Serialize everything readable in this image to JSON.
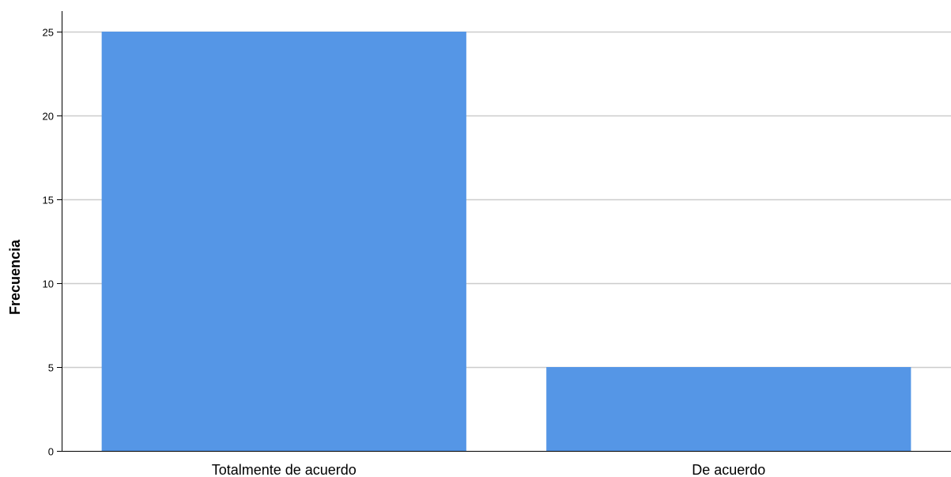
{
  "chart_data": {
    "type": "bar",
    "categories": [
      "Totalmente de acuerdo",
      "De acuerdo"
    ],
    "values": [
      25,
      5
    ],
    "ylabel": "Frecuencia",
    "xlabel": "",
    "ylim": [
      0,
      25
    ],
    "yticks": [
      0,
      5,
      10,
      15,
      20,
      25
    ],
    "grid": true,
    "colors": {
      "bar": "#5596e6",
      "grid": "#cccccc",
      "axis": "#000000"
    }
  }
}
